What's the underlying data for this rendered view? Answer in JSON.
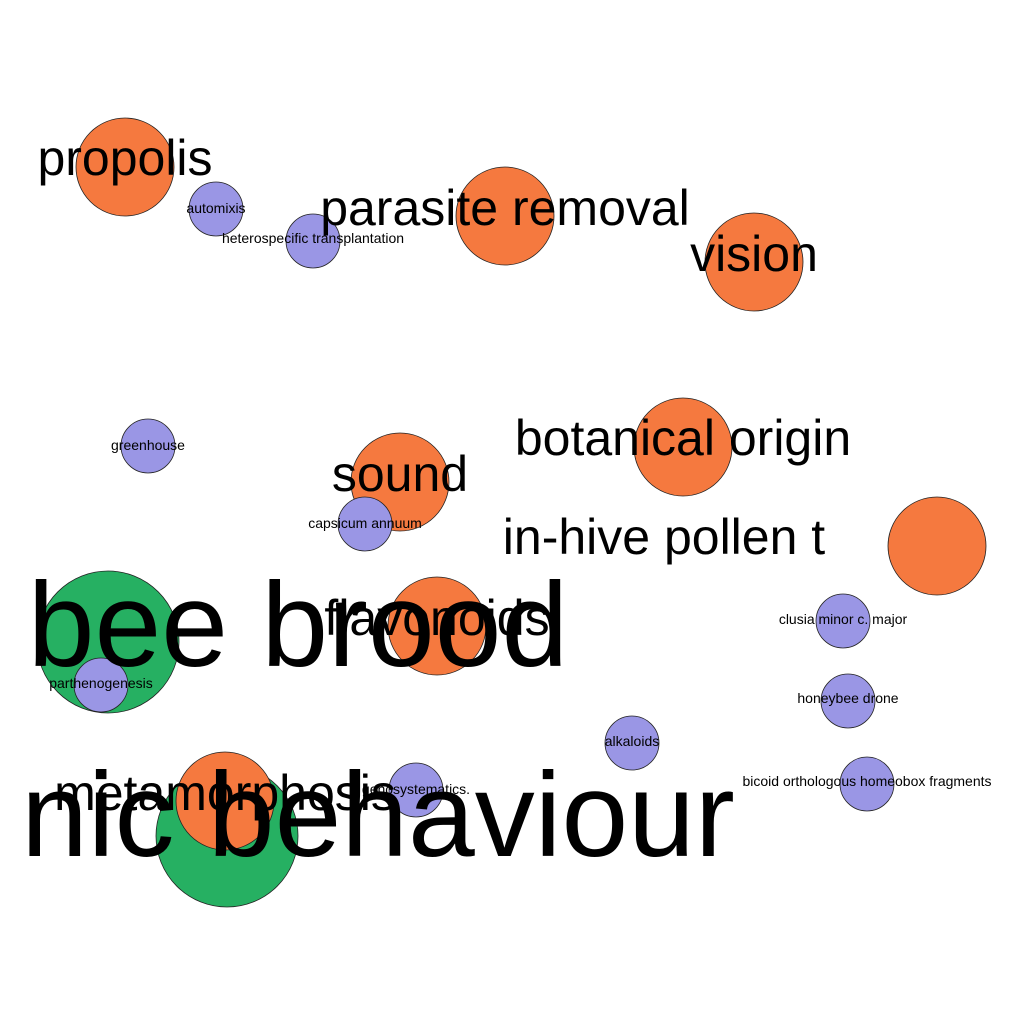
{
  "colors": {
    "orange": "#F5793F",
    "green": "#26B062",
    "purple": "#9A96E5",
    "background": "#ffffff",
    "stroke": "#222222"
  },
  "nodes": [
    {
      "id": "propolis",
      "label": "propolis",
      "group": "orange"
    },
    {
      "id": "automixis",
      "label": "automixis",
      "group": "purple"
    },
    {
      "id": "parasite-removal",
      "label": "parasite removal",
      "group": "orange"
    },
    {
      "id": "heterospecific-transplantation",
      "label": "heterospecific transplantation",
      "group": "purple"
    },
    {
      "id": "vision",
      "label": "vision",
      "group": "orange"
    },
    {
      "id": "greenhouse",
      "label": "greenhouse",
      "group": "purple"
    },
    {
      "id": "botanical-origin",
      "label": "botanical origin",
      "group": "orange"
    },
    {
      "id": "sound",
      "label": "sound",
      "group": "orange"
    },
    {
      "id": "capsicum-annuum",
      "label": "capsicum annuum",
      "group": "purple"
    },
    {
      "id": "in-hive-pollen",
      "label": "in-hive pollen t",
      "group": "orange"
    },
    {
      "id": "bee-brood",
      "label": "bee brood",
      "group": "green"
    },
    {
      "id": "flavonoids",
      "label": "flavonoids",
      "group": "orange"
    },
    {
      "id": "clusia-minor",
      "label": "clusia minor c. major",
      "group": "purple"
    },
    {
      "id": "parthenogenesis",
      "label": "parthenogenesis",
      "group": "purple"
    },
    {
      "id": "honeybee-drone",
      "label": "honeybee drone",
      "group": "purple"
    },
    {
      "id": "alkaloids",
      "label": "alkaloids",
      "group": "purple"
    },
    {
      "id": "hygienic-behaviour",
      "label": "nic behaviour",
      "group": "green"
    },
    {
      "id": "metamorphosis",
      "label": "metamorphosis",
      "group": "orange"
    },
    {
      "id": "genosystematics",
      "label": "genosystematics.",
      "group": "purple"
    },
    {
      "id": "bicoid",
      "label": "bicoid orthologous homeobox fragments",
      "group": "purple"
    }
  ]
}
